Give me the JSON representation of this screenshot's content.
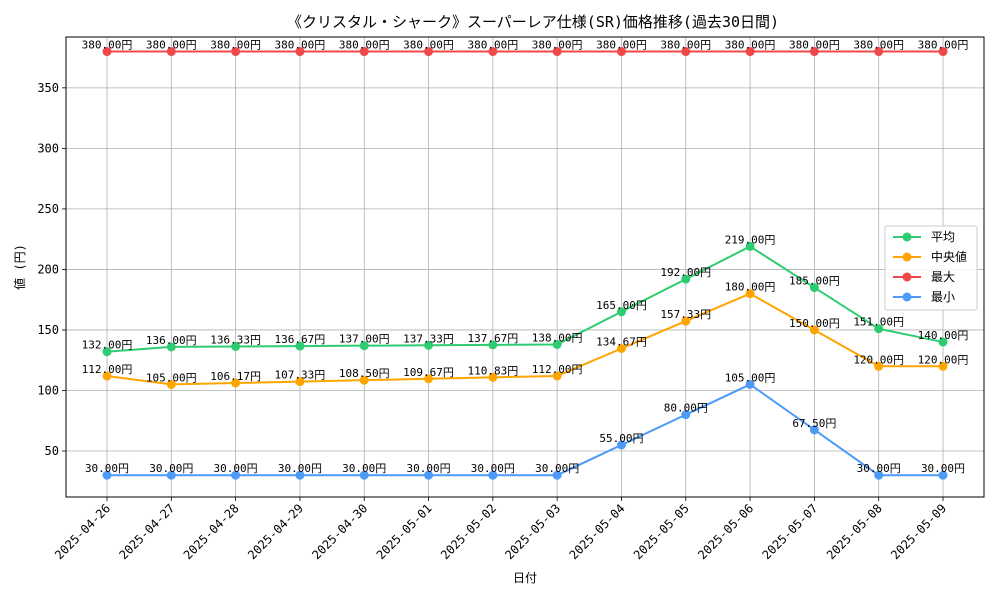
{
  "chart_data": {
    "type": "line",
    "title": "《クリスタル・シャーク》スーパーレア仕様(SR)価格推移(過去30日間)",
    "xlabel": "日付",
    "ylabel": "値 (円)",
    "ylim": [
      12,
      392
    ],
    "yticks": [
      50,
      100,
      150,
      200,
      250,
      300,
      350
    ],
    "grid": true,
    "legend_position": "right",
    "value_suffix": "円",
    "categories": [
      "2025-04-26",
      "2025-04-27",
      "2025-04-28",
      "2025-04-29",
      "2025-04-30",
      "2025-05-01",
      "2025-05-02",
      "2025-05-03",
      "2025-05-04",
      "2025-05-05",
      "2025-05-06",
      "2025-05-07",
      "2025-05-08",
      "2025-05-09"
    ],
    "series": [
      {
        "name": "平均",
        "color": "#2ecc71",
        "values": [
          132.0,
          136.0,
          136.33,
          136.67,
          137.0,
          137.33,
          137.67,
          138.0,
          165.0,
          192.0,
          219.0,
          185.0,
          151.0,
          140.0
        ]
      },
      {
        "name": "中央値",
        "color": "#ffa500",
        "values": [
          112.0,
          105.0,
          106.17,
          107.33,
          108.5,
          109.67,
          110.83,
          112.0,
          134.67,
          157.33,
          180.0,
          150.0,
          120.0,
          120.0
        ]
      },
      {
        "name": "最大",
        "color": "#f04848",
        "values": [
          380.0,
          380.0,
          380.0,
          380.0,
          380.0,
          380.0,
          380.0,
          380.0,
          380.0,
          380.0,
          380.0,
          380.0,
          380.0,
          380.0
        ]
      },
      {
        "name": "最小",
        "color": "#4d9bf7",
        "values": [
          30.0,
          30.0,
          30.0,
          30.0,
          30.0,
          30.0,
          30.0,
          30.0,
          55.0,
          80.0,
          105.0,
          67.5,
          30.0,
          30.0
        ]
      }
    ]
  }
}
